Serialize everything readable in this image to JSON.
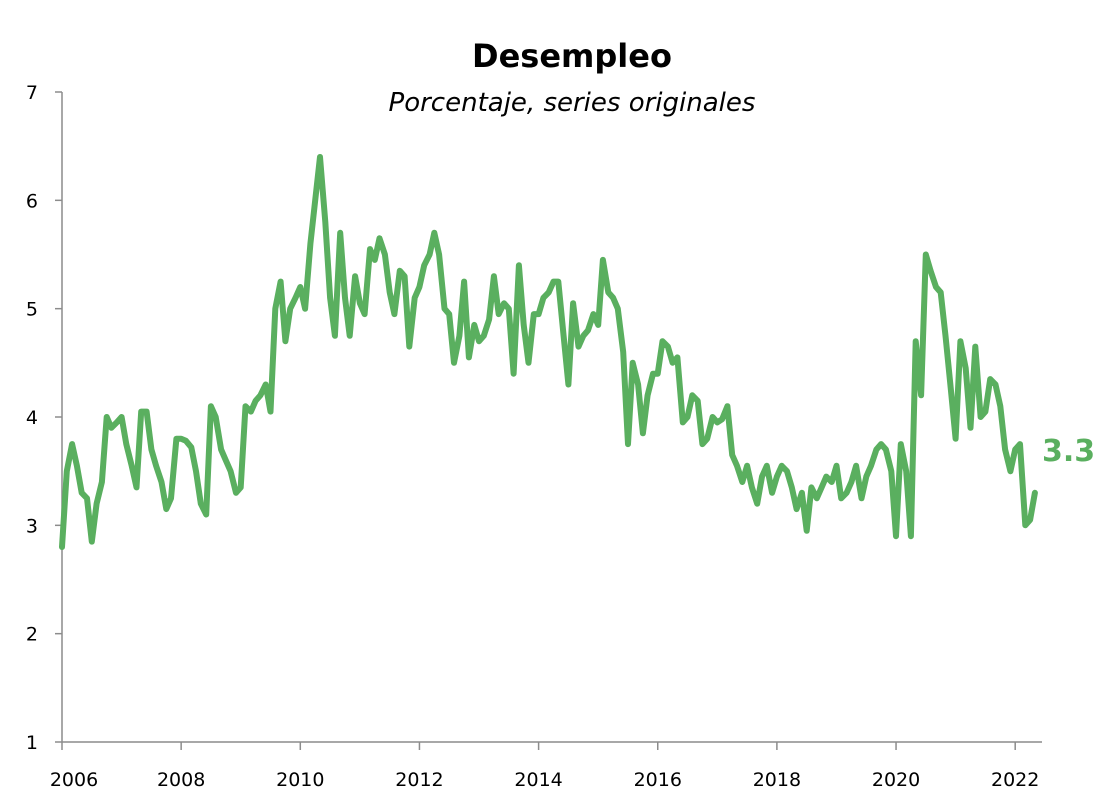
{
  "chart_data": {
    "type": "line",
    "title": "Desempleo",
    "subtitle": "Porcentaje, series originales",
    "xlabel": "",
    "ylabel": "",
    "ylim": [
      1,
      7
    ],
    "xlim": [
      2006,
      2022.45
    ],
    "yticks": [
      "1",
      "2",
      "3",
      "4",
      "5",
      "6",
      "7"
    ],
    "xticks": [
      "2006",
      "2008",
      "2010",
      "2012",
      "2014",
      "2016",
      "2018",
      "2020",
      "2022"
    ],
    "grid": false,
    "legend": "none",
    "color": "#5aaf5f",
    "end_label": "3.3",
    "series": [
      {
        "values": [
          [
            2006.0,
            2.8
          ],
          [
            2006.08,
            3.5
          ],
          [
            2006.17,
            3.75
          ],
          [
            2006.25,
            3.55
          ],
          [
            2006.33,
            3.3
          ],
          [
            2006.42,
            3.25
          ],
          [
            2006.5,
            2.85
          ],
          [
            2006.58,
            3.2
          ],
          [
            2006.67,
            3.4
          ],
          [
            2006.75,
            4.0
          ],
          [
            2006.83,
            3.9
          ],
          [
            2006.92,
            3.95
          ],
          [
            2007.0,
            4.0
          ],
          [
            2007.08,
            3.75
          ],
          [
            2007.17,
            3.55
          ],
          [
            2007.25,
            3.35
          ],
          [
            2007.33,
            4.05
          ],
          [
            2007.42,
            4.05
          ],
          [
            2007.5,
            3.7
          ],
          [
            2007.58,
            3.55
          ],
          [
            2007.67,
            3.4
          ],
          [
            2007.75,
            3.15
          ],
          [
            2007.83,
            3.25
          ],
          [
            2007.92,
            3.8
          ],
          [
            2008.0,
            3.8
          ],
          [
            2008.08,
            3.78
          ],
          [
            2008.17,
            3.72
          ],
          [
            2008.25,
            3.5
          ],
          [
            2008.33,
            3.2
          ],
          [
            2008.42,
            3.1
          ],
          [
            2008.5,
            4.1
          ],
          [
            2008.58,
            4.0
          ],
          [
            2008.67,
            3.7
          ],
          [
            2008.75,
            3.6
          ],
          [
            2008.83,
            3.5
          ],
          [
            2008.92,
            3.3
          ],
          [
            2009.0,
            3.35
          ],
          [
            2009.08,
            4.1
          ],
          [
            2009.17,
            4.05
          ],
          [
            2009.25,
            4.15
          ],
          [
            2009.33,
            4.2
          ],
          [
            2009.42,
            4.3
          ],
          [
            2009.5,
            4.05
          ],
          [
            2009.58,
            5.0
          ],
          [
            2009.67,
            5.25
          ],
          [
            2009.75,
            4.7
          ],
          [
            2009.83,
            5.0
          ],
          [
            2009.92,
            5.1
          ],
          [
            2010.0,
            5.2
          ],
          [
            2010.08,
            5.0
          ],
          [
            2010.17,
            5.6
          ],
          [
            2010.25,
            6.0
          ],
          [
            2010.33,
            6.4
          ],
          [
            2010.42,
            5.8
          ],
          [
            2010.5,
            5.1
          ],
          [
            2010.58,
            4.75
          ],
          [
            2010.67,
            5.7
          ],
          [
            2010.75,
            5.1
          ],
          [
            2010.83,
            4.75
          ],
          [
            2010.92,
            5.3
          ],
          [
            2011.0,
            5.05
          ],
          [
            2011.08,
            4.95
          ],
          [
            2011.17,
            5.55
          ],
          [
            2011.25,
            5.45
          ],
          [
            2011.33,
            5.65
          ],
          [
            2011.42,
            5.5
          ],
          [
            2011.5,
            5.15
          ],
          [
            2011.58,
            4.95
          ],
          [
            2011.67,
            5.35
          ],
          [
            2011.75,
            5.3
          ],
          [
            2011.83,
            4.65
          ],
          [
            2011.92,
            5.1
          ],
          [
            2012.0,
            5.2
          ],
          [
            2012.08,
            5.4
          ],
          [
            2012.17,
            5.5
          ],
          [
            2012.25,
            5.7
          ],
          [
            2012.33,
            5.5
          ],
          [
            2012.42,
            5.0
          ],
          [
            2012.5,
            4.95
          ],
          [
            2012.58,
            4.5
          ],
          [
            2012.67,
            4.75
          ],
          [
            2012.75,
            5.25
          ],
          [
            2012.83,
            4.55
          ],
          [
            2012.92,
            4.85
          ],
          [
            2013.0,
            4.7
          ],
          [
            2013.08,
            4.75
          ],
          [
            2013.17,
            4.9
          ],
          [
            2013.25,
            5.3
          ],
          [
            2013.33,
            4.95
          ],
          [
            2013.42,
            5.05
          ],
          [
            2013.5,
            5.0
          ],
          [
            2013.58,
            4.4
          ],
          [
            2013.67,
            5.4
          ],
          [
            2013.75,
            4.85
          ],
          [
            2013.83,
            4.5
          ],
          [
            2013.92,
            4.95
          ],
          [
            2014.0,
            4.95
          ],
          [
            2014.08,
            5.1
          ],
          [
            2014.17,
            5.15
          ],
          [
            2014.25,
            5.25
          ],
          [
            2014.33,
            5.25
          ],
          [
            2014.42,
            4.75
          ],
          [
            2014.5,
            4.3
          ],
          [
            2014.58,
            5.05
          ],
          [
            2014.67,
            4.65
          ],
          [
            2014.75,
            4.75
          ],
          [
            2014.83,
            4.8
          ],
          [
            2014.92,
            4.95
          ],
          [
            2015.0,
            4.85
          ],
          [
            2015.08,
            5.45
          ],
          [
            2015.17,
            5.15
          ],
          [
            2015.25,
            5.1
          ],
          [
            2015.33,
            5.0
          ],
          [
            2015.42,
            4.6
          ],
          [
            2015.5,
            3.75
          ],
          [
            2015.58,
            4.5
          ],
          [
            2015.67,
            4.3
          ],
          [
            2015.75,
            3.85
          ],
          [
            2015.83,
            4.2
          ],
          [
            2015.92,
            4.4
          ],
          [
            2016.0,
            4.4
          ],
          [
            2016.08,
            4.7
          ],
          [
            2016.17,
            4.65
          ],
          [
            2016.25,
            4.5
          ],
          [
            2016.33,
            4.55
          ],
          [
            2016.42,
            3.95
          ],
          [
            2016.5,
            4.0
          ],
          [
            2016.58,
            4.2
          ],
          [
            2016.67,
            4.15
          ],
          [
            2016.75,
            3.75
          ],
          [
            2016.83,
            3.8
          ],
          [
            2016.92,
            4.0
          ],
          [
            2017.0,
            3.95
          ],
          [
            2017.08,
            3.98
          ],
          [
            2017.17,
            4.1
          ],
          [
            2017.25,
            3.65
          ],
          [
            2017.33,
            3.55
          ],
          [
            2017.42,
            3.4
          ],
          [
            2017.5,
            3.55
          ],
          [
            2017.58,
            3.35
          ],
          [
            2017.67,
            3.2
          ],
          [
            2017.75,
            3.45
          ],
          [
            2017.83,
            3.55
          ],
          [
            2017.92,
            3.3
          ],
          [
            2018.0,
            3.45
          ],
          [
            2018.08,
            3.55
          ],
          [
            2018.17,
            3.5
          ],
          [
            2018.25,
            3.35
          ],
          [
            2018.33,
            3.15
          ],
          [
            2018.42,
            3.3
          ],
          [
            2018.5,
            2.95
          ],
          [
            2018.58,
            3.35
          ],
          [
            2018.67,
            3.25
          ],
          [
            2018.75,
            3.35
          ],
          [
            2018.83,
            3.45
          ],
          [
            2018.92,
            3.4
          ],
          [
            2019.0,
            3.55
          ],
          [
            2019.08,
            3.25
          ],
          [
            2019.17,
            3.3
          ],
          [
            2019.25,
            3.4
          ],
          [
            2019.33,
            3.55
          ],
          [
            2019.42,
            3.25
          ],
          [
            2019.5,
            3.45
          ],
          [
            2019.58,
            3.55
          ],
          [
            2019.67,
            3.7
          ],
          [
            2019.75,
            3.75
          ],
          [
            2019.83,
            3.7
          ],
          [
            2019.92,
            3.5
          ],
          [
            2020.0,
            2.9
          ],
          [
            2020.08,
            3.75
          ],
          [
            2020.17,
            3.5
          ],
          [
            2020.25,
            2.9
          ],
          [
            2020.33,
            4.7
          ],
          [
            2020.42,
            4.2
          ],
          [
            2020.5,
            5.5
          ],
          [
            2020.58,
            5.35
          ],
          [
            2020.67,
            5.2
          ],
          [
            2020.75,
            5.15
          ],
          [
            2020.83,
            4.75
          ],
          [
            2020.92,
            4.25
          ],
          [
            2021.0,
            3.8
          ],
          [
            2021.08,
            4.7
          ],
          [
            2021.17,
            4.45
          ],
          [
            2021.25,
            3.9
          ],
          [
            2021.33,
            4.65
          ],
          [
            2021.42,
            4.0
          ],
          [
            2021.5,
            4.05
          ],
          [
            2021.58,
            4.35
          ],
          [
            2021.67,
            4.3
          ],
          [
            2021.75,
            4.1
          ],
          [
            2021.83,
            3.7
          ],
          [
            2021.92,
            3.5
          ],
          [
            2022.0,
            3.7
          ],
          [
            2022.08,
            3.75
          ],
          [
            2022.17,
            3.0
          ],
          [
            2022.25,
            3.05
          ],
          [
            2022.33,
            3.3
          ]
        ]
      }
    ]
  }
}
